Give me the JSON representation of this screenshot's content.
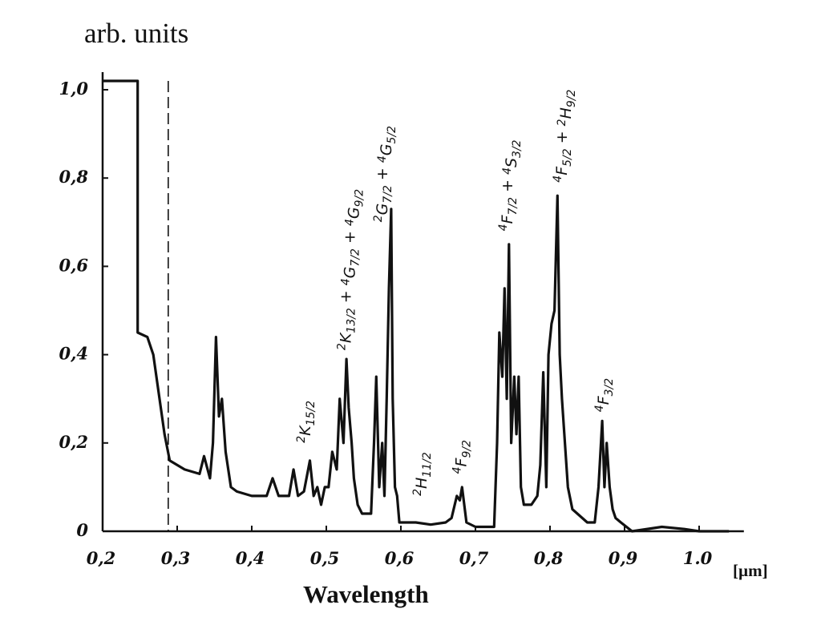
{
  "chart_data": {
    "type": "line",
    "title": "",
    "ylabel": "arb. units",
    "xlabel": "Wavelength",
    "xunit": "[µm]",
    "xlim": [
      0.2,
      1.06
    ],
    "ylim": [
      0,
      1.0
    ],
    "xticks": [
      {
        "v": 0.2,
        "label": "0,2"
      },
      {
        "v": 0.3,
        "label": "0,3"
      },
      {
        "v": 0.4,
        "label": "0,4"
      },
      {
        "v": 0.5,
        "label": "0,5"
      },
      {
        "v": 0.6,
        "label": "0,6"
      },
      {
        "v": 0.7,
        "label": "0,7"
      },
      {
        "v": 0.8,
        "label": "0,8"
      },
      {
        "v": 0.9,
        "label": "0,9"
      },
      {
        "v": 1.0,
        "label": "1.0"
      }
    ],
    "yticks": [
      {
        "v": 0,
        "label": "0"
      },
      {
        "v": 0.2,
        "label": "0,2"
      },
      {
        "v": 0.4,
        "label": "0,4"
      },
      {
        "v": 0.6,
        "label": "0,6"
      },
      {
        "v": 0.8,
        "label": "0,8"
      },
      {
        "v": 1.0,
        "label": "1,0"
      }
    ],
    "grid": false,
    "dashed_marker_x": 0.288,
    "series": [
      {
        "x": [
          0.2,
          0.247,
          0.247,
          0.26,
          0.268,
          0.283,
          0.29,
          0.31,
          0.33,
          0.336,
          0.344,
          0.348,
          0.352,
          0.356,
          0.36,
          0.365,
          0.372,
          0.38,
          0.4,
          0.42,
          0.428,
          0.436,
          0.45,
          0.456,
          0.462,
          0.47,
          0.478,
          0.483,
          0.488,
          0.493,
          0.498,
          0.503,
          0.508,
          0.514,
          0.518,
          0.523,
          0.527,
          0.53,
          0.534,
          0.537,
          0.542,
          0.548,
          0.56,
          0.564,
          0.567,
          0.571,
          0.575,
          0.578,
          0.581,
          0.584,
          0.587,
          0.589,
          0.592,
          0.595,
          0.598,
          0.605,
          0.62,
          0.64,
          0.66,
          0.668,
          0.675,
          0.679,
          0.682,
          0.688,
          0.7,
          0.725,
          0.729,
          0.732,
          0.736,
          0.739,
          0.742,
          0.745,
          0.748,
          0.752,
          0.755,
          0.758,
          0.761,
          0.765,
          0.775,
          0.783,
          0.787,
          0.791,
          0.795,
          0.798,
          0.802,
          0.806,
          0.81,
          0.813,
          0.816,
          0.82,
          0.824,
          0.83,
          0.85,
          0.86,
          0.865,
          0.87,
          0.873,
          0.876,
          0.88,
          0.884,
          0.888,
          0.895,
          0.91,
          0.95,
          0.98,
          1.0,
          1.04
        ],
        "y": [
          1.02,
          1.02,
          0.45,
          0.44,
          0.4,
          0.22,
          0.16,
          0.14,
          0.13,
          0.17,
          0.12,
          0.2,
          0.44,
          0.26,
          0.3,
          0.18,
          0.1,
          0.09,
          0.08,
          0.08,
          0.12,
          0.08,
          0.08,
          0.14,
          0.08,
          0.09,
          0.16,
          0.08,
          0.1,
          0.06,
          0.1,
          0.1,
          0.18,
          0.14,
          0.3,
          0.2,
          0.39,
          0.28,
          0.2,
          0.12,
          0.06,
          0.04,
          0.04,
          0.2,
          0.35,
          0.1,
          0.2,
          0.08,
          0.3,
          0.55,
          0.73,
          0.3,
          0.1,
          0.08,
          0.02,
          0.02,
          0.02,
          0.015,
          0.02,
          0.03,
          0.08,
          0.07,
          0.1,
          0.02,
          0.01,
          0.01,
          0.2,
          0.45,
          0.35,
          0.55,
          0.3,
          0.65,
          0.2,
          0.35,
          0.22,
          0.35,
          0.1,
          0.06,
          0.06,
          0.08,
          0.15,
          0.36,
          0.1,
          0.4,
          0.47,
          0.5,
          0.76,
          0.4,
          0.3,
          0.2,
          0.1,
          0.05,
          0.02,
          0.02,
          0.1,
          0.25,
          0.1,
          0.2,
          0.1,
          0.05,
          0.03,
          0.02,
          0.0,
          0.01,
          0.005,
          0.0,
          0.0
        ]
      }
    ],
    "annotations": [
      {
        "x": 0.471,
        "y": 0.2,
        "parts": [
          {
            "sup": "2",
            "main": "K",
            "sub": "15/2"
          }
        ]
      },
      {
        "x": 0.525,
        "y": 0.41,
        "parts": [
          {
            "sup": "2",
            "main": "K",
            "sub": "13/2"
          },
          {
            "sup": "4",
            "main": "G",
            "sub": "7/2"
          },
          {
            "sup": "4",
            "main": "G",
            "sub": "9/2"
          }
        ]
      },
      {
        "x": 0.574,
        "y": 0.7,
        "parts": [
          {
            "sup": "2",
            "main": "G",
            "sub": "7/2"
          },
          {
            "sup": "4",
            "main": "G",
            "sub": "5/2"
          }
        ]
      },
      {
        "x": 0.627,
        "y": 0.08,
        "parts": [
          {
            "sup": "2",
            "main": "H",
            "sub": "11/2"
          }
        ]
      },
      {
        "x": 0.68,
        "y": 0.13,
        "parts": [
          {
            "sup": "4",
            "main": "F",
            "sub": "9/2"
          }
        ]
      },
      {
        "x": 0.742,
        "y": 0.68,
        "parts": [
          {
            "sup": "4",
            "main": "F",
            "sub": "7/2"
          },
          {
            "sup": "4",
            "main": "S",
            "sub": "3/2"
          }
        ]
      },
      {
        "x": 0.815,
        "y": 0.79,
        "parts": [
          {
            "sup": "4",
            "main": "F",
            "sub": "5/2"
          },
          {
            "sup": "2",
            "main": "H",
            "sub": "9/2"
          }
        ]
      },
      {
        "x": 0.871,
        "y": 0.27,
        "parts": [
          {
            "sup": "4",
            "main": "F",
            "sub": "3/2"
          }
        ]
      }
    ]
  }
}
